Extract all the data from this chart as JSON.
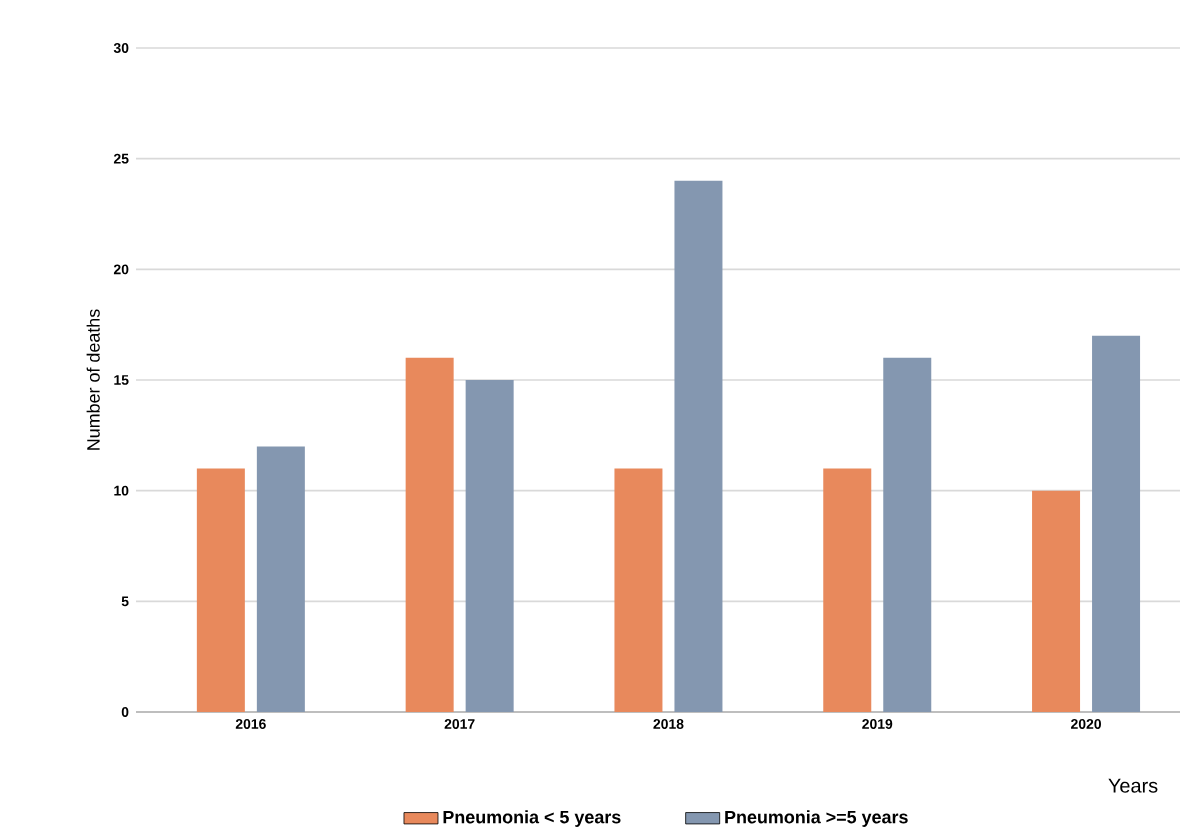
{
  "chart_data": {
    "type": "bar",
    "xlabel": "Years",
    "ylabel": "Number of deaths",
    "categories": [
      "2016",
      "2017",
      "2018",
      "2019",
      "2020"
    ],
    "series": [
      {
        "name": "Pneumonia < 5 years",
        "color": "#e8895c",
        "values": [
          11,
          16,
          11,
          11,
          10
        ]
      },
      {
        "name": "Pneumonia >=5 years",
        "color": "#8497b0",
        "values": [
          12,
          15,
          24,
          16,
          17
        ]
      }
    ],
    "ylim": [
      0,
      30
    ],
    "yticks": [
      0,
      5,
      10,
      15,
      20,
      25,
      30
    ],
    "grid": "y",
    "legend": "bottom"
  }
}
